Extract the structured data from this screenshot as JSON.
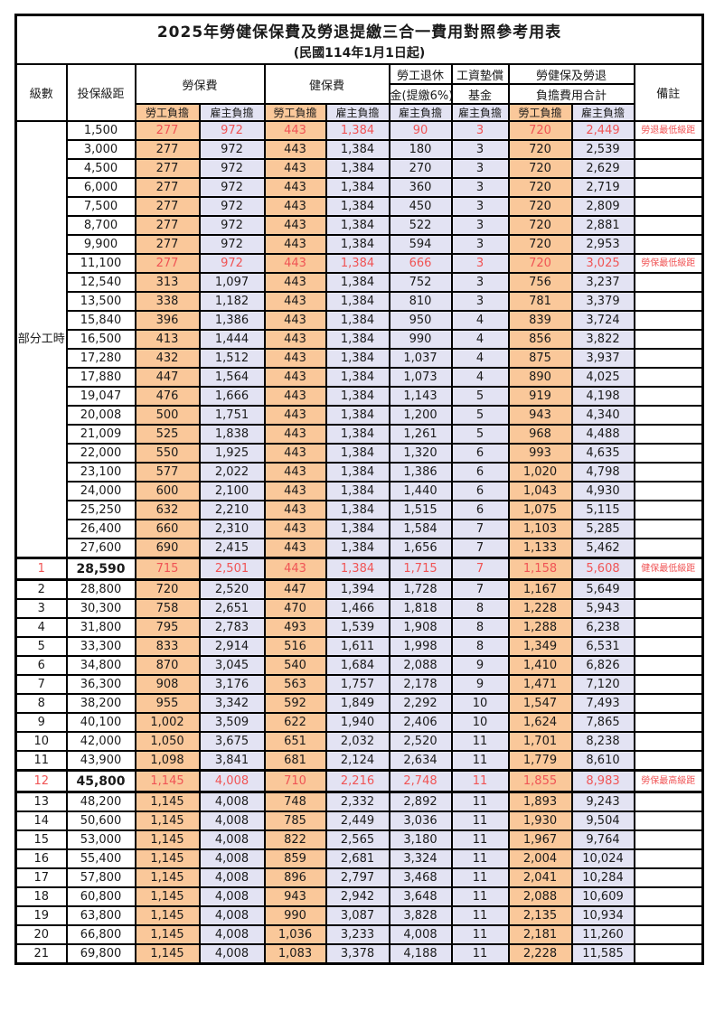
{
  "title": "2025年勞健保保費及勞退提繳三合一費用對照參考用表",
  "subtitle": "(民國114年1月1日起)",
  "colors": {
    "employee_bg": "#FAC89A",
    "employer_bg": "#E3E3F3",
    "highlight_red": "#F05455",
    "border": "#000000"
  },
  "table": {
    "header": {
      "level": "級數",
      "bracket": "投保級距",
      "labor_insurance": "勞保費",
      "health_insurance": "健保費",
      "pension_line1": "勞工退休",
      "pension_line2": "金(提繳6%)",
      "wage_fund_line1": "工資墊償",
      "wage_fund_line2": "基金",
      "total_line1": "勞健保及勞退",
      "total_line2": "負擔費用合計",
      "remark": "備註",
      "employee": "勞工負擔",
      "employer": "雇主負擔"
    },
    "part_time": {
      "label": "部分工時",
      "rowspan": 23
    },
    "rows": [
      {
        "level": "",
        "bracket": "1,500",
        "values": [
          "277",
          "972",
          "443",
          "1,384",
          "90",
          "3",
          "720",
          "2,449"
        ],
        "remark": "勞退最低級距",
        "red": true
      },
      {
        "level": "",
        "bracket": "3,000",
        "values": [
          "277",
          "972",
          "443",
          "1,384",
          "180",
          "3",
          "720",
          "2,539"
        ],
        "remark": ""
      },
      {
        "level": "",
        "bracket": "4,500",
        "values": [
          "277",
          "972",
          "443",
          "1,384",
          "270",
          "3",
          "720",
          "2,629"
        ],
        "remark": ""
      },
      {
        "level": "",
        "bracket": "6,000",
        "values": [
          "277",
          "972",
          "443",
          "1,384",
          "360",
          "3",
          "720",
          "2,719"
        ],
        "remark": ""
      },
      {
        "level": "",
        "bracket": "7,500",
        "values": [
          "277",
          "972",
          "443",
          "1,384",
          "450",
          "3",
          "720",
          "2,809"
        ],
        "remark": ""
      },
      {
        "level": "",
        "bracket": "8,700",
        "values": [
          "277",
          "972",
          "443",
          "1,384",
          "522",
          "3",
          "720",
          "2,881"
        ],
        "remark": ""
      },
      {
        "level": "",
        "bracket": "9,900",
        "values": [
          "277",
          "972",
          "443",
          "1,384",
          "594",
          "3",
          "720",
          "2,953"
        ],
        "remark": ""
      },
      {
        "level": "",
        "bracket": "11,100",
        "values": [
          "277",
          "972",
          "443",
          "1,384",
          "666",
          "3",
          "720",
          "3,025"
        ],
        "remark": "勞保最低級距",
        "red": true
      },
      {
        "level": "",
        "bracket": "12,540",
        "values": [
          "313",
          "1,097",
          "443",
          "1,384",
          "752",
          "3",
          "756",
          "3,237"
        ],
        "remark": ""
      },
      {
        "level": "",
        "bracket": "13,500",
        "values": [
          "338",
          "1,182",
          "443",
          "1,384",
          "810",
          "3",
          "781",
          "3,379"
        ],
        "remark": ""
      },
      {
        "level": "",
        "bracket": "15,840",
        "values": [
          "396",
          "1,386",
          "443",
          "1,384",
          "950",
          "4",
          "839",
          "3,724"
        ],
        "remark": ""
      },
      {
        "level": "",
        "bracket": "16,500",
        "values": [
          "413",
          "1,444",
          "443",
          "1,384",
          "990",
          "4",
          "856",
          "3,822"
        ],
        "remark": ""
      },
      {
        "level": "",
        "bracket": "17,280",
        "values": [
          "432",
          "1,512",
          "443",
          "1,384",
          "1,037",
          "4",
          "875",
          "3,937"
        ],
        "remark": ""
      },
      {
        "level": "",
        "bracket": "17,880",
        "values": [
          "447",
          "1,564",
          "443",
          "1,384",
          "1,073",
          "4",
          "890",
          "4,025"
        ],
        "remark": ""
      },
      {
        "level": "",
        "bracket": "19,047",
        "values": [
          "476",
          "1,666",
          "443",
          "1,384",
          "1,143",
          "5",
          "919",
          "4,198"
        ],
        "remark": ""
      },
      {
        "level": "",
        "bracket": "20,008",
        "values": [
          "500",
          "1,751",
          "443",
          "1,384",
          "1,200",
          "5",
          "943",
          "4,340"
        ],
        "remark": ""
      },
      {
        "level": "",
        "bracket": "21,009",
        "values": [
          "525",
          "1,838",
          "443",
          "1,384",
          "1,261",
          "5",
          "968",
          "4,488"
        ],
        "remark": ""
      },
      {
        "level": "",
        "bracket": "22,000",
        "values": [
          "550",
          "1,925",
          "443",
          "1,384",
          "1,320",
          "6",
          "993",
          "4,635"
        ],
        "remark": ""
      },
      {
        "level": "",
        "bracket": "23,100",
        "values": [
          "577",
          "2,022",
          "443",
          "1,384",
          "1,386",
          "6",
          "1,020",
          "4,798"
        ],
        "remark": ""
      },
      {
        "level": "",
        "bracket": "24,000",
        "values": [
          "600",
          "2,100",
          "443",
          "1,384",
          "1,440",
          "6",
          "1,043",
          "4,930"
        ],
        "remark": ""
      },
      {
        "level": "",
        "bracket": "25,250",
        "values": [
          "632",
          "2,210",
          "443",
          "1,384",
          "1,515",
          "6",
          "1,075",
          "5,115"
        ],
        "remark": ""
      },
      {
        "level": "",
        "bracket": "26,400",
        "values": [
          "660",
          "2,310",
          "443",
          "1,384",
          "1,584",
          "7",
          "1,103",
          "5,285"
        ],
        "remark": ""
      },
      {
        "level": "",
        "bracket": "27,600",
        "values": [
          "690",
          "2,415",
          "443",
          "1,384",
          "1,656",
          "7",
          "1,133",
          "5,462"
        ],
        "remark": ""
      },
      {
        "level": "1",
        "bracket": "28,590",
        "values": [
          "715",
          "2,501",
          "443",
          "1,384",
          "1,715",
          "7",
          "1,158",
          "5,608"
        ],
        "remark": "健保最低級距",
        "red": true,
        "key": true
      },
      {
        "level": "2",
        "bracket": "28,800",
        "values": [
          "720",
          "2,520",
          "447",
          "1,394",
          "1,728",
          "7",
          "1,167",
          "5,649"
        ],
        "remark": ""
      },
      {
        "level": "3",
        "bracket": "30,300",
        "values": [
          "758",
          "2,651",
          "470",
          "1,466",
          "1,818",
          "8",
          "1,228",
          "5,943"
        ],
        "remark": ""
      },
      {
        "level": "4",
        "bracket": "31,800",
        "values": [
          "795",
          "2,783",
          "493",
          "1,539",
          "1,908",
          "8",
          "1,288",
          "6,238"
        ],
        "remark": ""
      },
      {
        "level": "5",
        "bracket": "33,300",
        "values": [
          "833",
          "2,914",
          "516",
          "1,611",
          "1,998",
          "8",
          "1,349",
          "6,531"
        ],
        "remark": ""
      },
      {
        "level": "6",
        "bracket": "34,800",
        "values": [
          "870",
          "3,045",
          "540",
          "1,684",
          "2,088",
          "9",
          "1,410",
          "6,826"
        ],
        "remark": ""
      },
      {
        "level": "7",
        "bracket": "36,300",
        "values": [
          "908",
          "3,176",
          "563",
          "1,757",
          "2,178",
          "9",
          "1,471",
          "7,120"
        ],
        "remark": ""
      },
      {
        "level": "8",
        "bracket": "38,200",
        "values": [
          "955",
          "3,342",
          "592",
          "1,849",
          "2,292",
          "10",
          "1,547",
          "7,493"
        ],
        "remark": ""
      },
      {
        "level": "9",
        "bracket": "40,100",
        "values": [
          "1,002",
          "3,509",
          "622",
          "1,940",
          "2,406",
          "10",
          "1,624",
          "7,865"
        ],
        "remark": ""
      },
      {
        "level": "10",
        "bracket": "42,000",
        "values": [
          "1,050",
          "3,675",
          "651",
          "2,032",
          "2,520",
          "11",
          "1,701",
          "8,238"
        ],
        "remark": ""
      },
      {
        "level": "11",
        "bracket": "43,900",
        "values": [
          "1,098",
          "3,841",
          "681",
          "2,124",
          "2,634",
          "11",
          "1,779",
          "8,610"
        ],
        "remark": ""
      },
      {
        "level": "12",
        "bracket": "45,800",
        "values": [
          "1,145",
          "4,008",
          "710",
          "2,216",
          "2,748",
          "11",
          "1,855",
          "8,983"
        ],
        "remark": "勞保最高級距",
        "red": true,
        "key": true
      },
      {
        "level": "13",
        "bracket": "48,200",
        "values": [
          "1,145",
          "4,008",
          "748",
          "2,332",
          "2,892",
          "11",
          "1,893",
          "9,243"
        ],
        "remark": ""
      },
      {
        "level": "14",
        "bracket": "50,600",
        "values": [
          "1,145",
          "4,008",
          "785",
          "2,449",
          "3,036",
          "11",
          "1,930",
          "9,504"
        ],
        "remark": ""
      },
      {
        "level": "15",
        "bracket": "53,000",
        "values": [
          "1,145",
          "4,008",
          "822",
          "2,565",
          "3,180",
          "11",
          "1,967",
          "9,764"
        ],
        "remark": ""
      },
      {
        "level": "16",
        "bracket": "55,400",
        "values": [
          "1,145",
          "4,008",
          "859",
          "2,681",
          "3,324",
          "11",
          "2,004",
          "10,024"
        ],
        "remark": ""
      },
      {
        "level": "17",
        "bracket": "57,800",
        "values": [
          "1,145",
          "4,008",
          "896",
          "2,797",
          "3,468",
          "11",
          "2,041",
          "10,284"
        ],
        "remark": ""
      },
      {
        "level": "18",
        "bracket": "60,800",
        "values": [
          "1,145",
          "4,008",
          "943",
          "2,942",
          "3,648",
          "11",
          "2,088",
          "10,609"
        ],
        "remark": ""
      },
      {
        "level": "19",
        "bracket": "63,800",
        "values": [
          "1,145",
          "4,008",
          "990",
          "3,087",
          "3,828",
          "11",
          "2,135",
          "10,934"
        ],
        "remark": ""
      },
      {
        "level": "20",
        "bracket": "66,800",
        "values": [
          "1,145",
          "4,008",
          "1,036",
          "3,233",
          "4,008",
          "11",
          "2,181",
          "11,260"
        ],
        "remark": ""
      },
      {
        "level": "21",
        "bracket": "69,800",
        "values": [
          "1,145",
          "4,008",
          "1,083",
          "3,378",
          "4,188",
          "11",
          "2,228",
          "11,585"
        ],
        "remark": ""
      }
    ]
  }
}
